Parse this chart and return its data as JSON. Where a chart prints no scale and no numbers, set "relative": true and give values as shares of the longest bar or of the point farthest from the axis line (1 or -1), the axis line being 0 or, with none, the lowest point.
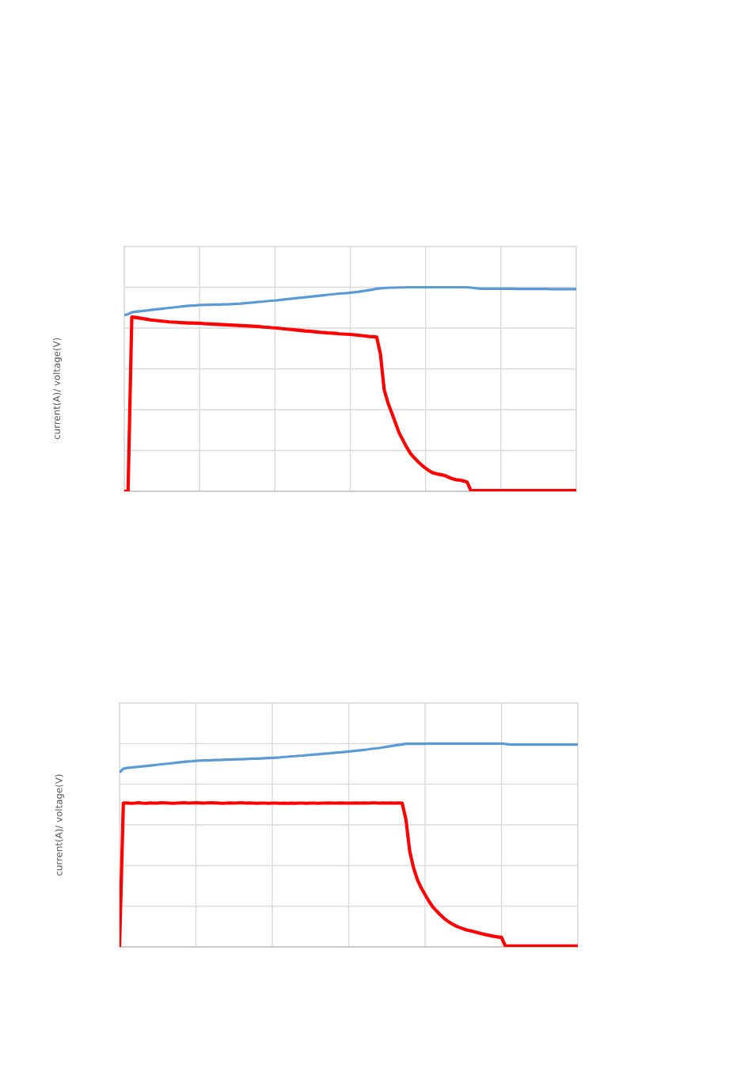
{
  "chart_data": [
    {
      "type": "line",
      "ylabel": "current(A)/ voltage(V)",
      "relative": true,
      "grid": true,
      "tick_labels": false,
      "categories": [
        null,
        null,
        null,
        null,
        null,
        null,
        null,
        null,
        null,
        null,
        null,
        null,
        null,
        null,
        null,
        null,
        null,
        null,
        null,
        null,
        null,
        null,
        null,
        null,
        null,
        null,
        null,
        null,
        null,
        null,
        null,
        null,
        null,
        null,
        null,
        null,
        null,
        null,
        null,
        null,
        null,
        null,
        null,
        null,
        null,
        null,
        null,
        null,
        null,
        null,
        null,
        null,
        null,
        null,
        null,
        null,
        null,
        null,
        null,
        null,
        null,
        null,
        null,
        null,
        null,
        null,
        null,
        null,
        null,
        null,
        null,
        null,
        null,
        null,
        null,
        null,
        null,
        null,
        null,
        null,
        null,
        null,
        null,
        null,
        null,
        null,
        null,
        null,
        null,
        null,
        null,
        null,
        null,
        null,
        null,
        null,
        null,
        null,
        null,
        null,
        null,
        null,
        null,
        null,
        null,
        null,
        null,
        null,
        null,
        null,
        null,
        null,
        null,
        null,
        null,
        null,
        null,
        null,
        null,
        null,
        null
      ],
      "series": [
        {
          "color": "#5b9bd5",
          "values": [
            0.863,
            0.868,
            0.877,
            0.88,
            0.882,
            0.884,
            0.886,
            0.889,
            0.891,
            0.893,
            0.895,
            0.897,
            0.899,
            0.901,
            0.903,
            0.905,
            0.907,
            0.909,
            0.91,
            0.911,
            0.913,
            0.913,
            0.914,
            0.914,
            0.915,
            0.915,
            0.916,
            0.916,
            0.917,
            0.918,
            0.919,
            0.92,
            0.922,
            0.924,
            0.925,
            0.927,
            0.929,
            0.93,
            0.932,
            0.934,
            0.935,
            0.937,
            0.939,
            0.941,
            0.943,
            0.945,
            0.947,
            0.949,
            0.951,
            0.953,
            0.955,
            0.957,
            0.959,
            0.961,
            0.963,
            0.965,
            0.967,
            0.969,
            0.97,
            0.971,
            0.973,
            0.975,
            0.977,
            0.98,
            0.983,
            0.986,
            0.989,
            0.993,
            0.995,
            0.996,
            0.997,
            0.998,
            0.998,
            0.999,
            0.999,
            1.0,
            1.0,
            1.0,
            1.0,
            1.0,
            1.0,
            1.0,
            1.0,
            1.0,
            1.0,
            1.0,
            1.0,
            1.0,
            1.0,
            1.0,
            1.0,
            1.0,
            0.998,
            0.996,
            0.994,
            0.993,
            0.993,
            0.993,
            0.993,
            0.993,
            0.993,
            0.993,
            0.993,
            0.993,
            0.992,
            0.992,
            0.992,
            0.992,
            0.992,
            0.992,
            0.992,
            0.992,
            0.992,
            0.991,
            0.991,
            0.991,
            0.991,
            0.991,
            0.991,
            0.991,
            0.991
          ]
        },
        {
          "color": "#ff0000",
          "values": [
            0,
            0,
            0.854,
            0.852,
            0.849,
            0.846,
            0.843,
            0.84,
            0.838,
            0.836,
            0.834,
            0.832,
            0.83,
            0.829,
            0.828,
            0.827,
            0.826,
            0.825,
            0.825,
            0.824,
            0.824,
            0.822,
            0.821,
            0.82,
            0.819,
            0.818,
            0.817,
            0.816,
            0.815,
            0.814,
            0.813,
            0.812,
            0.811,
            0.81,
            0.809,
            0.808,
            0.807,
            0.805,
            0.804,
            0.802,
            0.801,
            0.799,
            0.797,
            0.795,
            0.794,
            0.792,
            0.79,
            0.788,
            0.786,
            0.785,
            0.783,
            0.781,
            0.779,
            0.778,
            0.776,
            0.775,
            0.774,
            0.772,
            0.771,
            0.77,
            0.769,
            0.767,
            0.765,
            0.763,
            0.761,
            0.759,
            0.758,
            0.756,
            0.674,
            0.498,
            0.434,
            0.385,
            0.335,
            0.285,
            0.25,
            0.215,
            0.185,
            0.164,
            0.145,
            0.128,
            0.113,
            0.1,
            0.09,
            0.085,
            0.082,
            0.078,
            0.07,
            0.062,
            0.057,
            0.055,
            0.051,
            0.046,
            0.004,
            0.004,
            0.004,
            0.004,
            0.004,
            0.004,
            0.004,
            0.004,
            0.004,
            0.004,
            0.004,
            0.004,
            0.004,
            0.004,
            0.004,
            0.004,
            0.004,
            0.004,
            0.004,
            0.004,
            0.004,
            0.004,
            0.004,
            0.004,
            0.004,
            0.004,
            0.004,
            0.004,
            0.004
          ]
        }
      ]
    },
    {
      "type": "line",
      "ylabel": "current(A)/ voltage(V)",
      "relative": true,
      "grid": true,
      "tick_labels": false,
      "categories": [
        null,
        null,
        null,
        null,
        null,
        null,
        null,
        null,
        null,
        null,
        null,
        null,
        null,
        null,
        null,
        null,
        null,
        null,
        null,
        null,
        null,
        null,
        null,
        null,
        null,
        null,
        null,
        null,
        null,
        null,
        null,
        null,
        null,
        null,
        null,
        null,
        null,
        null,
        null,
        null,
        null,
        null,
        null,
        null,
        null,
        null,
        null,
        null,
        null,
        null,
        null,
        null,
        null,
        null,
        null,
        null,
        null,
        null,
        null,
        null,
        null,
        null,
        null,
        null,
        null,
        null,
        null,
        null,
        null,
        null,
        null,
        null,
        null,
        null,
        null,
        null,
        null,
        null,
        null,
        null,
        null,
        null,
        null,
        null,
        null,
        null,
        null,
        null,
        null,
        null,
        null,
        null,
        null,
        null,
        null,
        null,
        null,
        null,
        null,
        null,
        null,
        null,
        null,
        null,
        null,
        null,
        null,
        null,
        null,
        null,
        null,
        null,
        null,
        null,
        null,
        null,
        null,
        null,
        null,
        null,
        null
      ],
      "series": [
        {
          "color": "#5b9bd5",
          "values": [
            0.858,
            0.876,
            0.88,
            0.882,
            0.884,
            0.886,
            0.888,
            0.89,
            0.892,
            0.894,
            0.896,
            0.898,
            0.9,
            0.902,
            0.904,
            0.906,
            0.908,
            0.91,
            0.912,
            0.913,
            0.915,
            0.916,
            0.917,
            0.917,
            0.918,
            0.919,
            0.919,
            0.92,
            0.921,
            0.921,
            0.922,
            0.923,
            0.923,
            0.924,
            0.925,
            0.926,
            0.926,
            0.927,
            0.928,
            0.929,
            0.93,
            0.931,
            0.932,
            0.934,
            0.935,
            0.937,
            0.938,
            0.94,
            0.941,
            0.943,
            0.944,
            0.946,
            0.947,
            0.949,
            0.951,
            0.952,
            0.954,
            0.956,
            0.957,
            0.959,
            0.961,
            0.963,
            0.965,
            0.967,
            0.969,
            0.971,
            0.974,
            0.976,
            0.978,
            0.981,
            0.984,
            0.987,
            0.99,
            0.993,
            0.996,
            0.999,
            0.999,
            0.999,
            0.999,
            0.999,
            0.999,
            1.0,
            1.0,
            1.0,
            1.0,
            1.0,
            1.0,
            1.0,
            1.0,
            1.0,
            1.0,
            1.0,
            1.0,
            1.0,
            1.0,
            1.0,
            1.0,
            1.0,
            1.0,
            1.0,
            1.0,
            0.998,
            0.996,
            0.995,
            0.995,
            0.995,
            0.995,
            0.995,
            0.995,
            0.995,
            0.995,
            0.995,
            0.995,
            0.995,
            0.995,
            0.995,
            0.995,
            0.995,
            0.995,
            0.995,
            0.995
          ]
        },
        {
          "color": "#ff0000",
          "values": [
            0,
            0.707,
            0.708,
            0.706,
            0.707,
            0.709,
            0.707,
            0.706,
            0.708,
            0.707,
            0.707,
            0.709,
            0.708,
            0.707,
            0.706,
            0.707,
            0.708,
            0.709,
            0.707,
            0.708,
            0.709,
            0.708,
            0.707,
            0.708,
            0.709,
            0.708,
            0.707,
            0.706,
            0.707,
            0.708,
            0.707,
            0.708,
            0.709,
            0.707,
            0.708,
            0.707,
            0.706,
            0.707,
            0.707,
            0.706,
            0.707,
            0.707,
            0.706,
            0.707,
            0.706,
            0.707,
            0.706,
            0.707,
            0.707,
            0.706,
            0.707,
            0.707,
            0.706,
            0.707,
            0.707,
            0.708,
            0.707,
            0.707,
            0.708,
            0.707,
            0.707,
            0.707,
            0.708,
            0.707,
            0.708,
            0.707,
            0.708,
            0.708,
            0.707,
            0.708,
            0.707,
            0.708,
            0.707,
            0.708,
            0.707,
            0.625,
            0.468,
            0.388,
            0.33,
            0.29,
            0.257,
            0.225,
            0.197,
            0.177,
            0.158,
            0.14,
            0.126,
            0.114,
            0.104,
            0.096,
            0.089,
            0.083,
            0.079,
            0.074,
            0.069,
            0.064,
            0.06,
            0.056,
            0.052,
            0.049,
            0.047,
            0.005,
            0.005,
            0.005,
            0.005,
            0.005,
            0.005,
            0.005,
            0.005,
            0.005,
            0.005,
            0.005,
            0.005,
            0.005,
            0.005,
            0.005,
            0.005,
            0.005,
            0.005,
            0.005,
            0.005
          ]
        }
      ]
    }
  ]
}
